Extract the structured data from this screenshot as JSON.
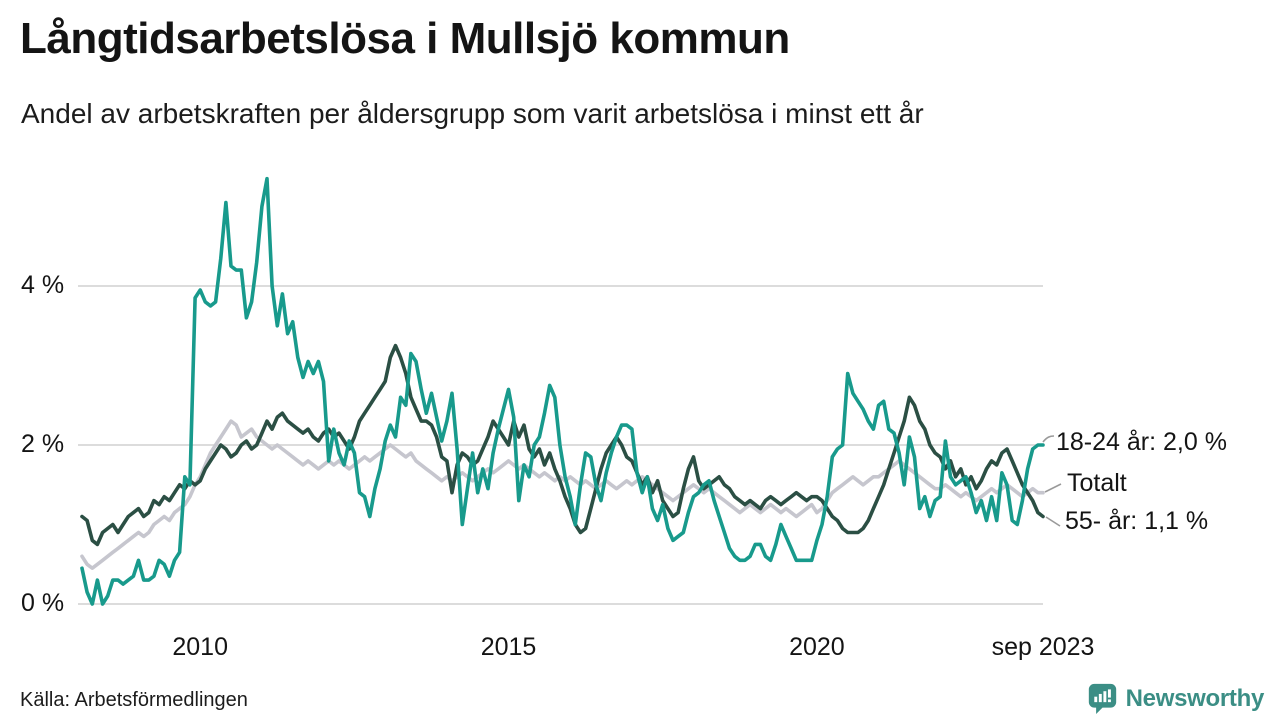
{
  "header": {
    "title": "Långtidsarbetslösa i Mullsjö kommun",
    "subtitle": "Andel av arbetskraften per åldersgrupp som varit arbetslösa i minst ett år"
  },
  "footer": {
    "source": "Källa: Arbetsförmedlingen",
    "brand": "Newsworthy",
    "brand_color": "#3b8e85",
    "brand_icon": "newsworthy-speech-bubble-barchart-icon"
  },
  "chart_data": {
    "type": "line",
    "title": "Långtidsarbetslösa i Mullsjö kommun",
    "subtitle": "Andel av arbetskraften per åldersgrupp som varit arbetslösa i minst ett år",
    "unit": "% av arbetskraften",
    "frequency": "monthly",
    "x_range": [
      "2008-02",
      "2023-09"
    ],
    "grid": "horizontal-only",
    "gridline_color": "#dcdcdc",
    "ylim": [
      0,
      5.6
    ],
    "y_axis": {
      "ticks": [
        {
          "label": "4 %",
          "value": 4
        },
        {
          "label": "2 %",
          "value": 2
        },
        {
          "label": "0 %",
          "value": 0
        }
      ]
    },
    "x_axis": {
      "ticks": [
        {
          "label": "2010",
          "month_index": 23
        },
        {
          "label": "2015",
          "month_index": 83
        },
        {
          "label": "2020",
          "month_index": 143
        },
        {
          "label": "sep 2023",
          "month_index": 187
        }
      ]
    },
    "annotations": {
      "a1824": "18-24 år: 2,0 %",
      "atotal": "Totalt",
      "a55": "55- år: 1,1 %"
    },
    "series": [
      {
        "name": "Totalt",
        "color": "#c6c6ce",
        "end_value": 1.4,
        "values": [
          0.6,
          0.5,
          0.45,
          0.5,
          0.55,
          0.6,
          0.65,
          0.7,
          0.75,
          0.8,
          0.85,
          0.9,
          0.85,
          0.9,
          1.0,
          1.05,
          1.1,
          1.05,
          1.15,
          1.2,
          1.25,
          1.35,
          1.5,
          1.6,
          1.75,
          1.9,
          2.0,
          2.1,
          2.2,
          2.3,
          2.25,
          2.1,
          2.15,
          2.2,
          2.1,
          2.05,
          2.0,
          1.95,
          2.0,
          1.95,
          1.9,
          1.85,
          1.8,
          1.75,
          1.8,
          1.75,
          1.7,
          1.75,
          1.8,
          1.75,
          1.8,
          1.75,
          1.7,
          1.75,
          1.8,
          1.85,
          1.8,
          1.85,
          1.9,
          1.95,
          2.0,
          1.95,
          1.9,
          1.85,
          1.9,
          1.8,
          1.75,
          1.7,
          1.65,
          1.6,
          1.55,
          1.6,
          1.55,
          1.6,
          1.65,
          1.6,
          1.55,
          1.6,
          1.65,
          1.7,
          1.65,
          1.7,
          1.75,
          1.8,
          1.75,
          1.7,
          1.75,
          1.7,
          1.65,
          1.6,
          1.65,
          1.6,
          1.55,
          1.6,
          1.55,
          1.6,
          1.55,
          1.5,
          1.55,
          1.5,
          1.45,
          1.5,
          1.55,
          1.5,
          1.45,
          1.5,
          1.55,
          1.5,
          1.55,
          1.6,
          1.55,
          1.5,
          1.45,
          1.4,
          1.35,
          1.3,
          1.35,
          1.4,
          1.45,
          1.5,
          1.45,
          1.4,
          1.45,
          1.4,
          1.35,
          1.3,
          1.25,
          1.2,
          1.15,
          1.2,
          1.25,
          1.2,
          1.15,
          1.2,
          1.25,
          1.2,
          1.15,
          1.2,
          1.15,
          1.1,
          1.15,
          1.2,
          1.25,
          1.15,
          1.2,
          1.3,
          1.4,
          1.45,
          1.5,
          1.55,
          1.6,
          1.55,
          1.5,
          1.55,
          1.6,
          1.6,
          1.65,
          1.7,
          1.75,
          1.8,
          1.75,
          1.7,
          1.65,
          1.6,
          1.55,
          1.5,
          1.45,
          1.45,
          1.5,
          1.45,
          1.4,
          1.35,
          1.4,
          1.35,
          1.3,
          1.35,
          1.4,
          1.45,
          1.4,
          1.45,
          1.5,
          1.45,
          1.4,
          1.35,
          1.4,
          1.45,
          1.4,
          1.4
        ]
      },
      {
        "name": "55- år",
        "color": "#2b4f44",
        "end_value": 1.1,
        "values": [
          1.1,
          1.05,
          0.8,
          0.75,
          0.9,
          0.95,
          1.0,
          0.9,
          1.0,
          1.1,
          1.15,
          1.2,
          1.1,
          1.15,
          1.3,
          1.25,
          1.35,
          1.3,
          1.4,
          1.5,
          1.45,
          1.55,
          1.5,
          1.55,
          1.7,
          1.8,
          1.9,
          2.0,
          1.95,
          1.85,
          1.9,
          2.0,
          2.05,
          1.95,
          2.0,
          2.15,
          2.3,
          2.2,
          2.35,
          2.4,
          2.3,
          2.25,
          2.2,
          2.15,
          2.2,
          2.1,
          2.05,
          2.15,
          2.2,
          2.1,
          2.15,
          2.05,
          1.95,
          2.1,
          2.3,
          2.4,
          2.5,
          2.6,
          2.7,
          2.8,
          3.1,
          3.25,
          3.1,
          2.9,
          2.6,
          2.45,
          2.3,
          2.3,
          2.25,
          2.1,
          1.85,
          1.8,
          1.4,
          1.75,
          1.9,
          1.85,
          1.75,
          1.8,
          1.95,
          2.1,
          2.3,
          2.2,
          2.1,
          2.0,
          2.3,
          2.1,
          2.25,
          1.95,
          1.85,
          1.95,
          1.75,
          1.9,
          1.7,
          1.55,
          1.35,
          1.2,
          1.0,
          0.9,
          0.95,
          1.2,
          1.45,
          1.7,
          1.9,
          2.0,
          2.1,
          2.0,
          1.85,
          1.8,
          1.65,
          1.5,
          1.6,
          1.4,
          1.55,
          1.3,
          1.2,
          1.1,
          1.15,
          1.45,
          1.7,
          1.85,
          1.55,
          1.45,
          1.5,
          1.55,
          1.6,
          1.5,
          1.45,
          1.35,
          1.3,
          1.25,
          1.3,
          1.25,
          1.2,
          1.3,
          1.35,
          1.3,
          1.25,
          1.3,
          1.35,
          1.4,
          1.35,
          1.3,
          1.35,
          1.35,
          1.3,
          1.2,
          1.1,
          1.05,
          0.95,
          0.9,
          0.9,
          0.9,
          0.95,
          1.05,
          1.2,
          1.35,
          1.5,
          1.7,
          1.9,
          2.1,
          2.3,
          2.6,
          2.5,
          2.3,
          2.2,
          2.0,
          1.9,
          1.85,
          1.7,
          1.8,
          1.6,
          1.7,
          1.5,
          1.6,
          1.45,
          1.55,
          1.7,
          1.8,
          1.75,
          1.9,
          1.95,
          1.8,
          1.65,
          1.5,
          1.4,
          1.3,
          1.15,
          1.1
        ]
      },
      {
        "name": "18-24 år",
        "color": "#189a8c",
        "end_value": 2.0,
        "values": [
          0.45,
          0.15,
          0.0,
          0.3,
          0.0,
          0.1,
          0.3,
          0.3,
          0.25,
          0.3,
          0.35,
          0.55,
          0.3,
          0.3,
          0.35,
          0.55,
          0.5,
          0.35,
          0.55,
          0.65,
          1.6,
          1.5,
          3.85,
          3.95,
          3.8,
          3.75,
          3.8,
          4.35,
          5.05,
          4.25,
          4.2,
          4.2,
          3.6,
          3.8,
          4.3,
          5.0,
          5.35,
          4.0,
          3.5,
          3.9,
          3.4,
          3.55,
          3.1,
          2.85,
          3.05,
          2.9,
          3.05,
          2.8,
          1.8,
          2.2,
          1.9,
          1.75,
          2.05,
          1.9,
          1.4,
          1.35,
          1.1,
          1.45,
          1.7,
          2.05,
          2.25,
          2.1,
          2.6,
          2.5,
          3.15,
          3.05,
          2.7,
          2.4,
          2.65,
          2.35,
          2.05,
          2.3,
          2.65,
          1.95,
          1.0,
          1.45,
          1.9,
          1.4,
          1.7,
          1.45,
          1.9,
          2.2,
          2.45,
          2.7,
          2.35,
          1.3,
          1.75,
          1.6,
          2.0,
          2.1,
          2.4,
          2.75,
          2.6,
          2.0,
          1.6,
          1.35,
          1.0,
          1.5,
          1.9,
          1.85,
          1.5,
          1.3,
          1.65,
          1.9,
          2.1,
          2.25,
          2.25,
          2.2,
          1.65,
          1.4,
          1.6,
          1.2,
          1.05,
          1.25,
          0.95,
          0.8,
          0.85,
          0.9,
          1.15,
          1.35,
          1.4,
          1.5,
          1.55,
          1.3,
          1.1,
          0.9,
          0.7,
          0.6,
          0.55,
          0.55,
          0.6,
          0.75,
          0.75,
          0.6,
          0.55,
          0.75,
          1.0,
          0.85,
          0.7,
          0.55,
          0.55,
          0.55,
          0.55,
          0.8,
          1.0,
          1.35,
          1.85,
          1.95,
          2.0,
          2.9,
          2.65,
          2.55,
          2.45,
          2.3,
          2.2,
          2.5,
          2.55,
          2.2,
          2.15,
          1.9,
          1.5,
          2.1,
          1.85,
          1.2,
          1.35,
          1.1,
          1.3,
          1.35,
          2.05,
          1.6,
          1.5,
          1.55,
          1.6,
          1.4,
          1.15,
          1.3,
          1.05,
          1.35,
          1.05,
          1.65,
          1.5,
          1.05,
          1.0,
          1.3,
          1.7,
          1.95,
          2.0,
          2.0
        ]
      }
    ]
  }
}
